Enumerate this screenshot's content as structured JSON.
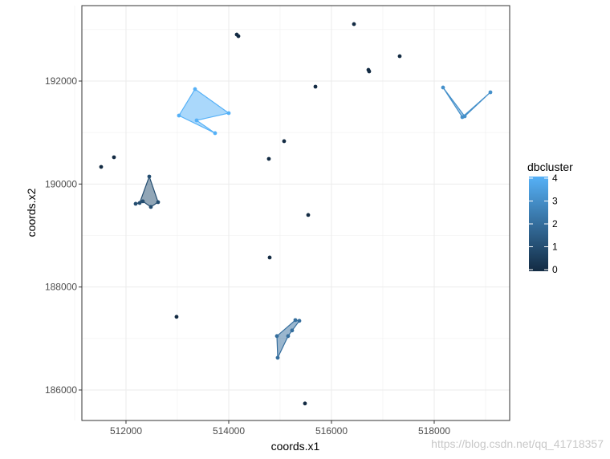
{
  "chart_data": {
    "type": "scatter",
    "x_label": "coords.x1",
    "y_label": "coords.x2",
    "xlim": [
      511141,
      519469
    ],
    "ylim": [
      185408,
      193465
    ],
    "xticks": [
      512000,
      514000,
      516000,
      518000
    ],
    "yticks": [
      186000,
      188000,
      190000,
      192000
    ],
    "x_minor_ticks": [
      511000,
      513000,
      515000,
      517000,
      519000
    ],
    "y_minor_ticks": [
      187000,
      189000,
      191000,
      193000
    ],
    "grid": true,
    "color_scale": {
      "title": "dbcluster",
      "low": "#132B43",
      "high": "#56B1F7",
      "limits": [
        0,
        4
      ],
      "ticks": [
        0,
        1,
        2,
        3,
        4
      ]
    },
    "series": [
      {
        "cluster": 0,
        "x": [
          514156,
          514188,
          516438,
          516719,
          516734,
          517328,
          515688,
          511516,
          511766,
          515078,
          514781,
          515547,
          514797,
          512984,
          515484
        ],
        "values": [
          192903,
          192872,
          193106,
          192218,
          192187,
          192483,
          191891,
          190333,
          190520,
          190832,
          190489,
          189399,
          188573,
          187421,
          185738
        ]
      },
      {
        "cluster": 1,
        "x": [
          512453,
          512625,
          512484,
          512328,
          512188,
          512266
        ],
        "values": [
          190146,
          189648,
          189555,
          189664,
          189617,
          189632
        ]
      },
      {
        "cluster": 2,
        "x": [
          515297,
          515375,
          515234,
          515156,
          514953,
          514938
        ],
        "values": [
          187358,
          187343,
          187156,
          187047,
          186626,
          187047
        ]
      },
      {
        "cluster": 3,
        "x": [
          518172,
          518547,
          519094,
          518594
        ],
        "values": [
          191875,
          191299,
          191782,
          191315
        ]
      },
      {
        "cluster": 4,
        "x": [
          513344,
          514000,
          513375,
          513734,
          513031
        ],
        "values": [
          191844,
          191377,
          191237,
          190988,
          191330
        ]
      }
    ],
    "watermark": "https://blog.csdn.net/qq_41718357"
  }
}
